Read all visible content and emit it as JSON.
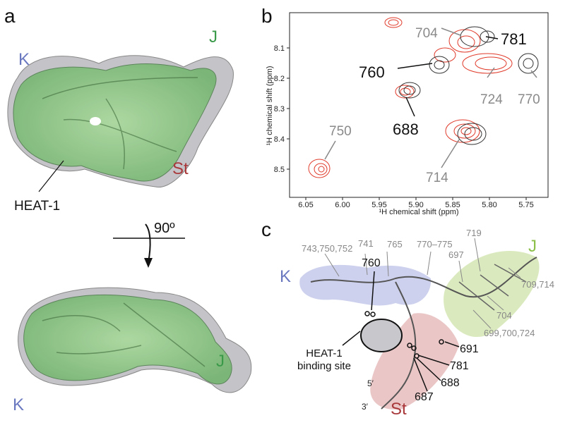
{
  "panel_a": {
    "label": "a",
    "top_labels": {
      "k": "K",
      "j": "J",
      "st": "St",
      "heat": "HEAT-1"
    },
    "rotation": "90º",
    "bottom_labels": {
      "j": "J",
      "k": "K"
    }
  },
  "panel_b": {
    "label": "b",
    "x_label": "¹H chemical shift (ppm)",
    "y_label": "¹H chemical shift (ppm)",
    "x_ticks": [
      "6.05",
      "6.00",
      "5.95",
      "5.90",
      "5.85",
      "5.80",
      "5.75"
    ],
    "y_ticks": [
      "8.1",
      "8.2",
      "8.3",
      "8.4",
      "8.5"
    ],
    "gray_peaks": [
      "704",
      "724",
      "770",
      "750",
      "714"
    ],
    "black_peaks": [
      "781",
      "760",
      "688"
    ]
  },
  "panel_c": {
    "label": "c",
    "domains": {
      "k": "K",
      "j": "J",
      "st": "St"
    },
    "gray_residues": [
      "743,750,752",
      "741",
      "765",
      "770–775",
      "719",
      "697",
      "709,714",
      "704",
      "699,700,724"
    ],
    "black_residues": [
      "760",
      "691",
      "781",
      "688",
      "687"
    ],
    "ends": [
      "5′",
      "3′"
    ],
    "site": [
      "HEAT-1",
      "binding site"
    ]
  }
}
